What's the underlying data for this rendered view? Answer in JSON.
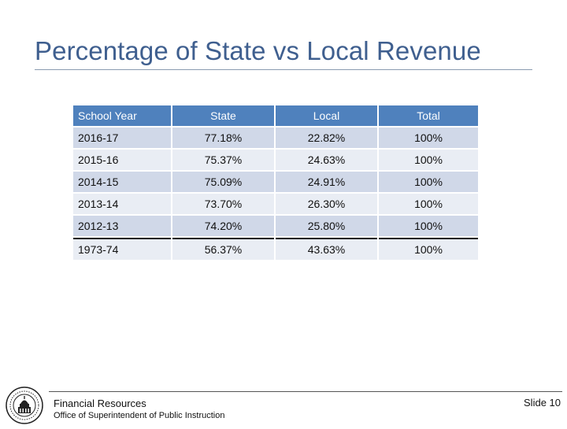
{
  "slide": {
    "title": "Percentage of State vs Local Revenue",
    "number_label": "Slide 10"
  },
  "table": {
    "headers": [
      "School Year",
      "State",
      "Local",
      "Total"
    ],
    "rows": [
      [
        "2016-17",
        "77.18%",
        "22.82%",
        "100%"
      ],
      [
        "2015-16",
        "75.37%",
        "24.63%",
        "100%"
      ],
      [
        "2014-15",
        "75.09%",
        "24.91%",
        "100%"
      ],
      [
        "2013-14",
        "73.70%",
        "26.30%",
        "100%"
      ],
      [
        "2012-13",
        "74.20%",
        "25.80%",
        "100%"
      ],
      [
        "1973-74",
        "56.37%",
        "43.63%",
        "100%"
      ]
    ]
  },
  "footer": {
    "org": "Financial Resources",
    "office": "Office of Superintendent of Public Instruction",
    "seal_icon": "state-seal-icon"
  },
  "colors": {
    "title": "#3f5f8f",
    "header_fill": "#4f81bd",
    "row_band_dark": "#d0d8e8",
    "row_band_light": "#e9edf4"
  }
}
